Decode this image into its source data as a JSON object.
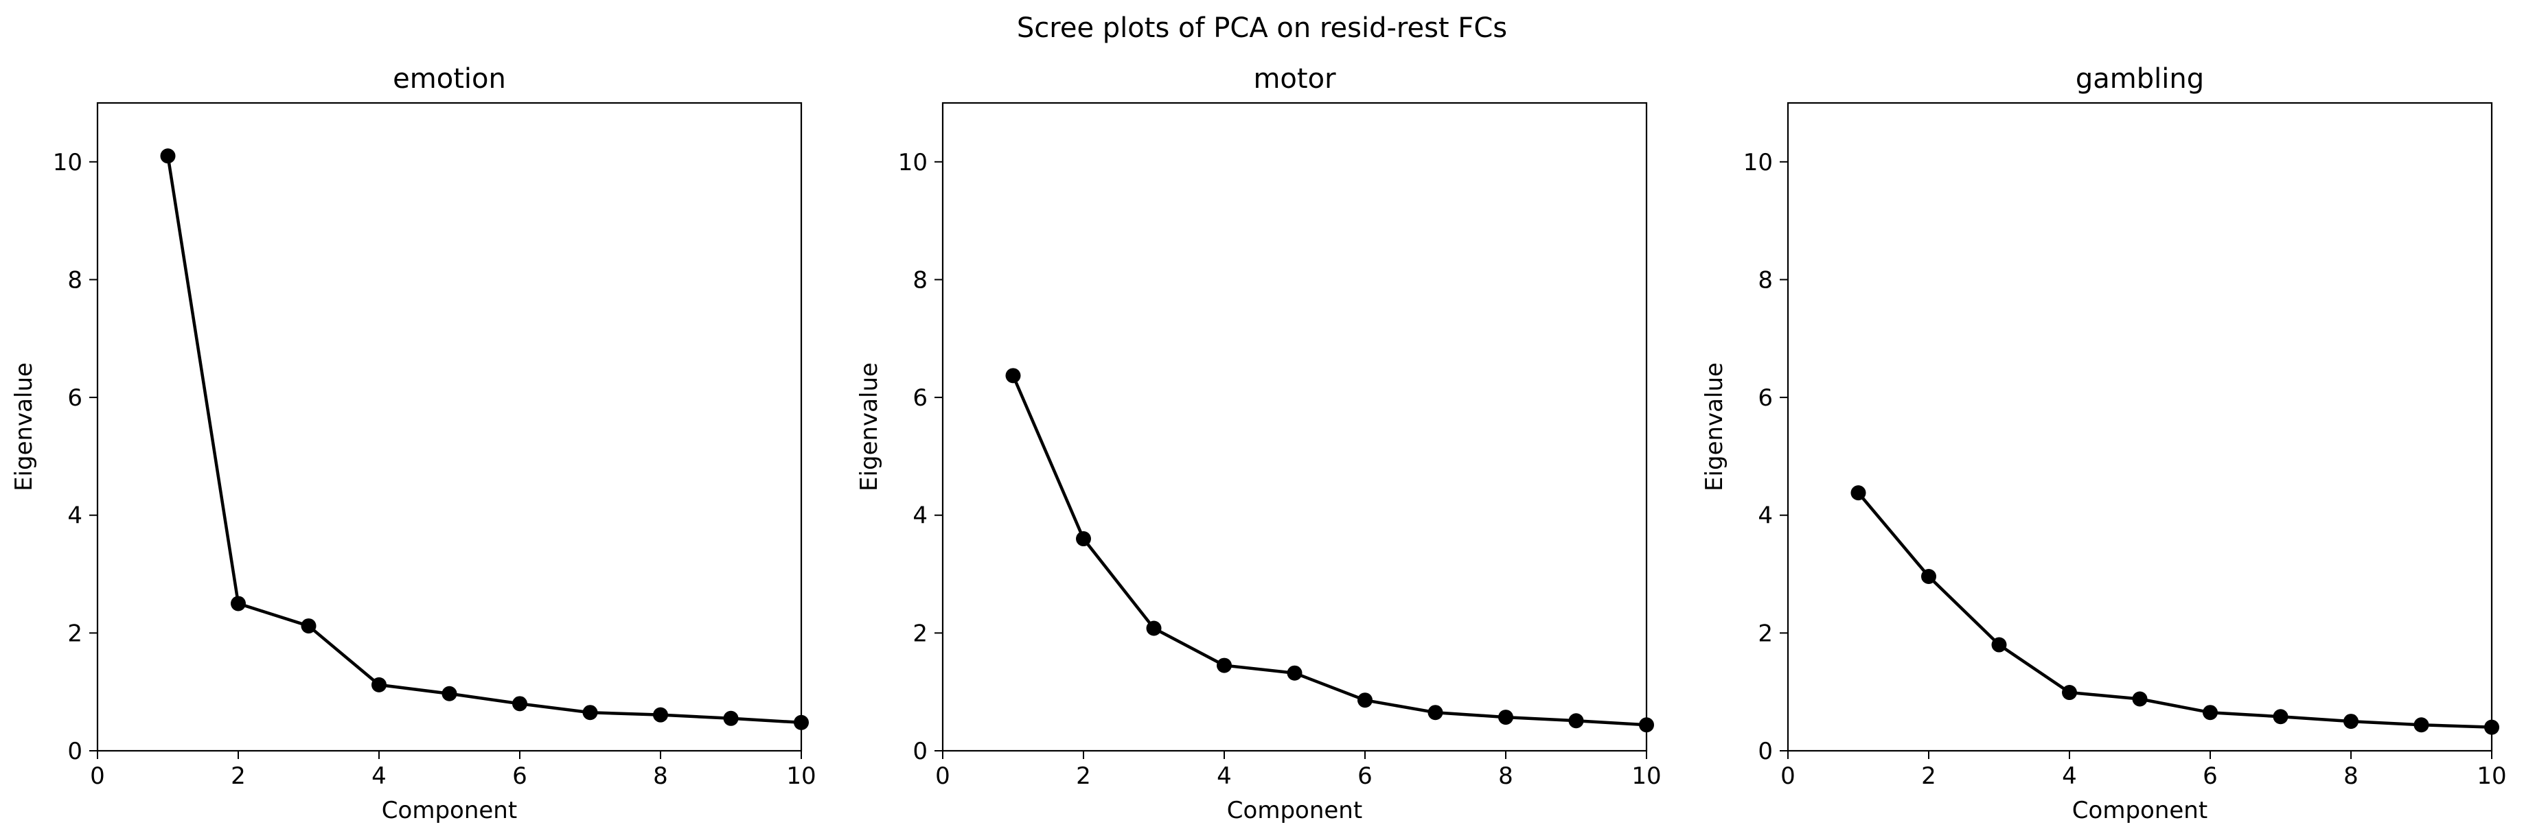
{
  "figure": {
    "suptitle": "Scree plots of PCA on resid-rest FCs"
  },
  "style": {
    "line_color": "#000000",
    "marker_color": "#000000",
    "background": "#ffffff"
  },
  "chart_data": [
    {
      "type": "line",
      "title": "emotion",
      "xlabel": "Component",
      "ylabel": "Eigenvalue",
      "xlim": [
        0,
        10
      ],
      "ylim": [
        0,
        11
      ],
      "xticks": [
        0,
        2,
        4,
        6,
        8,
        10
      ],
      "yticks": [
        0,
        2,
        4,
        6,
        8,
        10
      ],
      "grid": false,
      "marker": "circle",
      "series": [
        {
          "x": [
            1,
            2,
            3,
            4,
            5,
            6,
            7,
            8,
            9,
            10
          ],
          "y": [
            10.1,
            2.5,
            2.12,
            1.12,
            0.97,
            0.8,
            0.65,
            0.61,
            0.55,
            0.48
          ]
        }
      ]
    },
    {
      "type": "line",
      "title": "motor",
      "xlabel": "Component",
      "ylabel": "Eigenvalue",
      "xlim": [
        0,
        10
      ],
      "ylim": [
        0,
        11
      ],
      "xticks": [
        0,
        2,
        4,
        6,
        8,
        10
      ],
      "yticks": [
        0,
        2,
        4,
        6,
        8,
        10
      ],
      "grid": false,
      "marker": "circle",
      "series": [
        {
          "x": [
            1,
            2,
            3,
            4,
            5,
            6,
            7,
            8,
            9,
            10
          ],
          "y": [
            6.37,
            3.6,
            2.08,
            1.45,
            1.32,
            0.86,
            0.65,
            0.57,
            0.51,
            0.44
          ]
        }
      ]
    },
    {
      "type": "line",
      "title": "gambling",
      "xlabel": "Component",
      "ylabel": "Eigenvalue",
      "xlim": [
        0,
        10
      ],
      "ylim": [
        0,
        11
      ],
      "xticks": [
        0,
        2,
        4,
        6,
        8,
        10
      ],
      "yticks": [
        0,
        2,
        4,
        6,
        8,
        10
      ],
      "grid": false,
      "marker": "circle",
      "series": [
        {
          "x": [
            1,
            2,
            3,
            4,
            5,
            6,
            7,
            8,
            9,
            10
          ],
          "y": [
            4.38,
            2.96,
            1.8,
            0.99,
            0.88,
            0.65,
            0.58,
            0.5,
            0.44,
            0.4
          ]
        }
      ]
    }
  ]
}
